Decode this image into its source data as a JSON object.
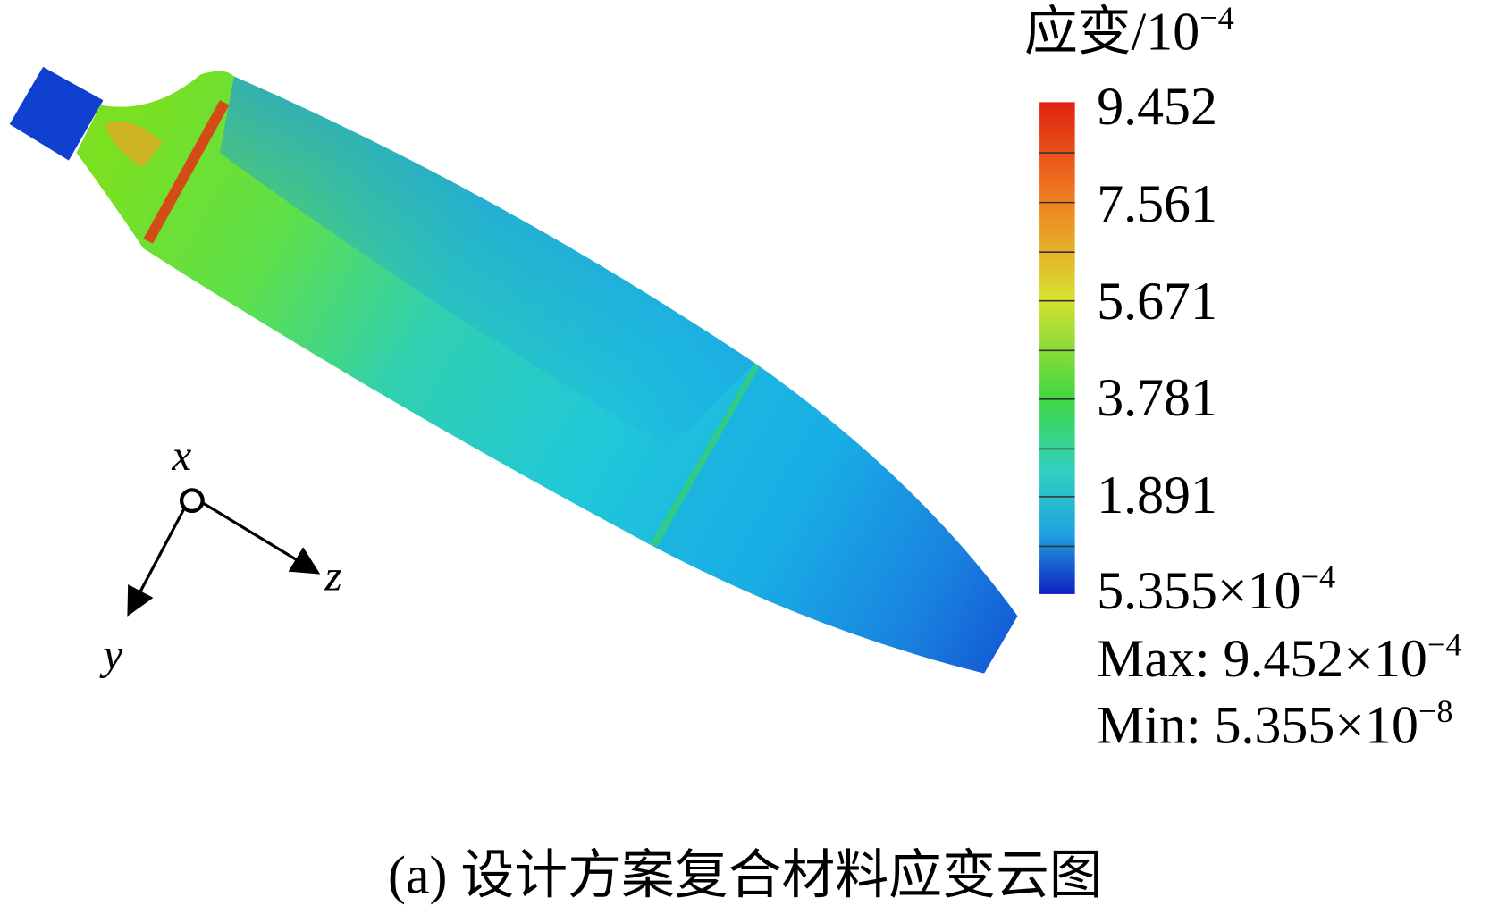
{
  "legend": {
    "title": {
      "text": "应变/10",
      "exponent": "−4"
    },
    "labels": [
      {
        "text": "9.452"
      },
      {
        "text": "7.561"
      },
      {
        "text": "5.671"
      },
      {
        "text": "3.781"
      },
      {
        "text": "1.891"
      },
      {
        "text": "5.355×10",
        "exponent": "−4"
      }
    ],
    "max": {
      "text": "Max: 9.452×10",
      "exponent": "−4"
    },
    "min": {
      "text": "Min: 5.355×10",
      "exponent": "−8"
    }
  },
  "axes": {
    "x": "x",
    "y": "y",
    "z": "z"
  },
  "caption": "(a) 设计方案复合材料应变云图"
}
